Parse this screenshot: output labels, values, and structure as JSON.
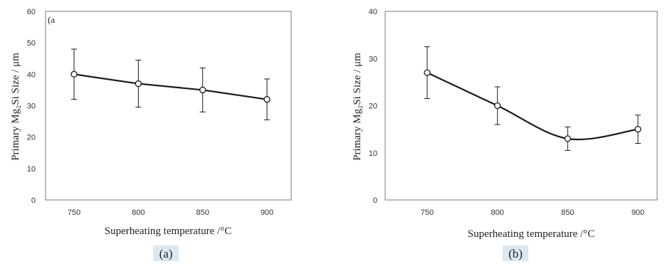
{
  "chart_data": [
    {
      "type": "line",
      "panel_label": "(a",
      "caption": "(a)",
      "xlabel": "Superheating temperature /°C",
      "ylabel": "Primary Mg₂Si Size / μm",
      "x": [
        750,
        800,
        850,
        900
      ],
      "x_tick_labels": [
        "750",
        "800",
        "850",
        "900"
      ],
      "y_tick_labels": [
        "0",
        "10",
        "20",
        "30",
        "40",
        "50",
        "60"
      ],
      "ylim": [
        0,
        60
      ],
      "series": [
        {
          "values": [
            40,
            37,
            35,
            32
          ],
          "error_plus": [
            8,
            7.5,
            7,
            6.5
          ],
          "error_minus": [
            8,
            7.5,
            7,
            6.5
          ],
          "curve": "straight"
        }
      ],
      "grid": false
    },
    {
      "type": "line",
      "panel_label": "",
      "caption": "(b)",
      "xlabel": "Superheating temperature /°C",
      "ylabel": "Primary Mg₂Si Size / μm",
      "x": [
        750,
        800,
        850,
        900
      ],
      "x_tick_labels": [
        "750",
        "800",
        "850",
        "900"
      ],
      "y_tick_labels": [
        "0",
        "10",
        "20",
        "30",
        "40"
      ],
      "ylim": [
        0,
        40
      ],
      "series": [
        {
          "values": [
            27,
            20,
            13,
            15
          ],
          "error_plus": [
            5.5,
            4,
            2.5,
            3
          ],
          "error_minus": [
            5.5,
            4,
            2.5,
            3
          ],
          "curve": "smooth"
        }
      ],
      "grid": false
    }
  ],
  "colors": {
    "line": "#1a1a1a",
    "frame": "#7a7a7a",
    "caption_bg": "#dce8f1"
  }
}
